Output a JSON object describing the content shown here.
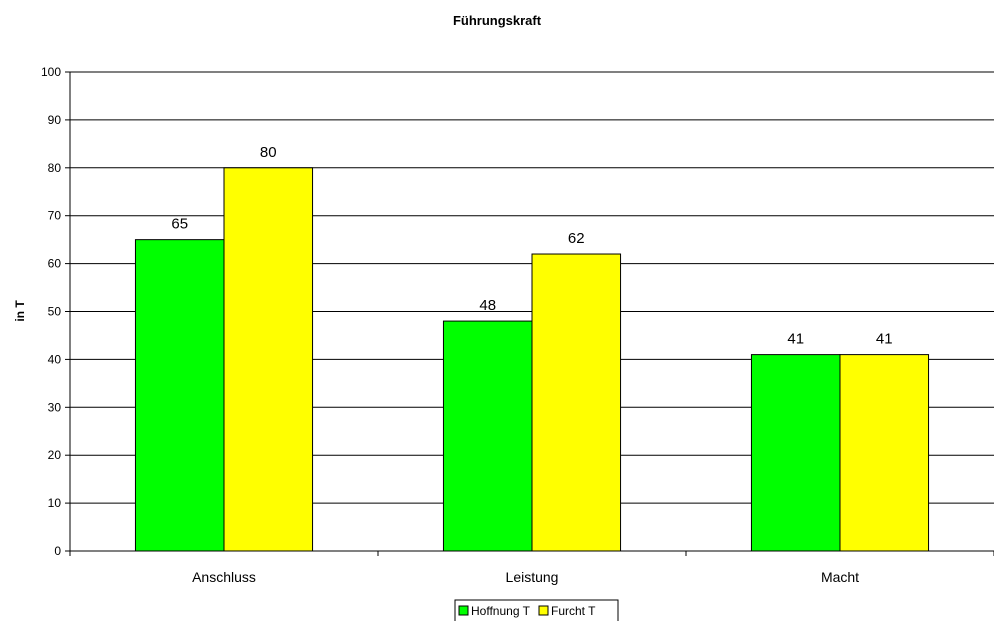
{
  "chart_data": {
    "type": "bar",
    "title": "Führungskraft",
    "xlabel": "",
    "ylabel": "in T",
    "ylim": [
      0,
      100
    ],
    "yticks": [
      0,
      10,
      20,
      30,
      40,
      50,
      60,
      70,
      80,
      90,
      100
    ],
    "grid": true,
    "legend_position": "bottom",
    "categories": [
      "Anschluss",
      "Leistung",
      "Macht"
    ],
    "series": [
      {
        "name": "Hoffnung T",
        "color": "#00ff00",
        "values": [
          65,
          48,
          41
        ]
      },
      {
        "name": "Furcht T",
        "color": "#ffff00",
        "values": [
          80,
          62,
          41
        ]
      }
    ]
  }
}
